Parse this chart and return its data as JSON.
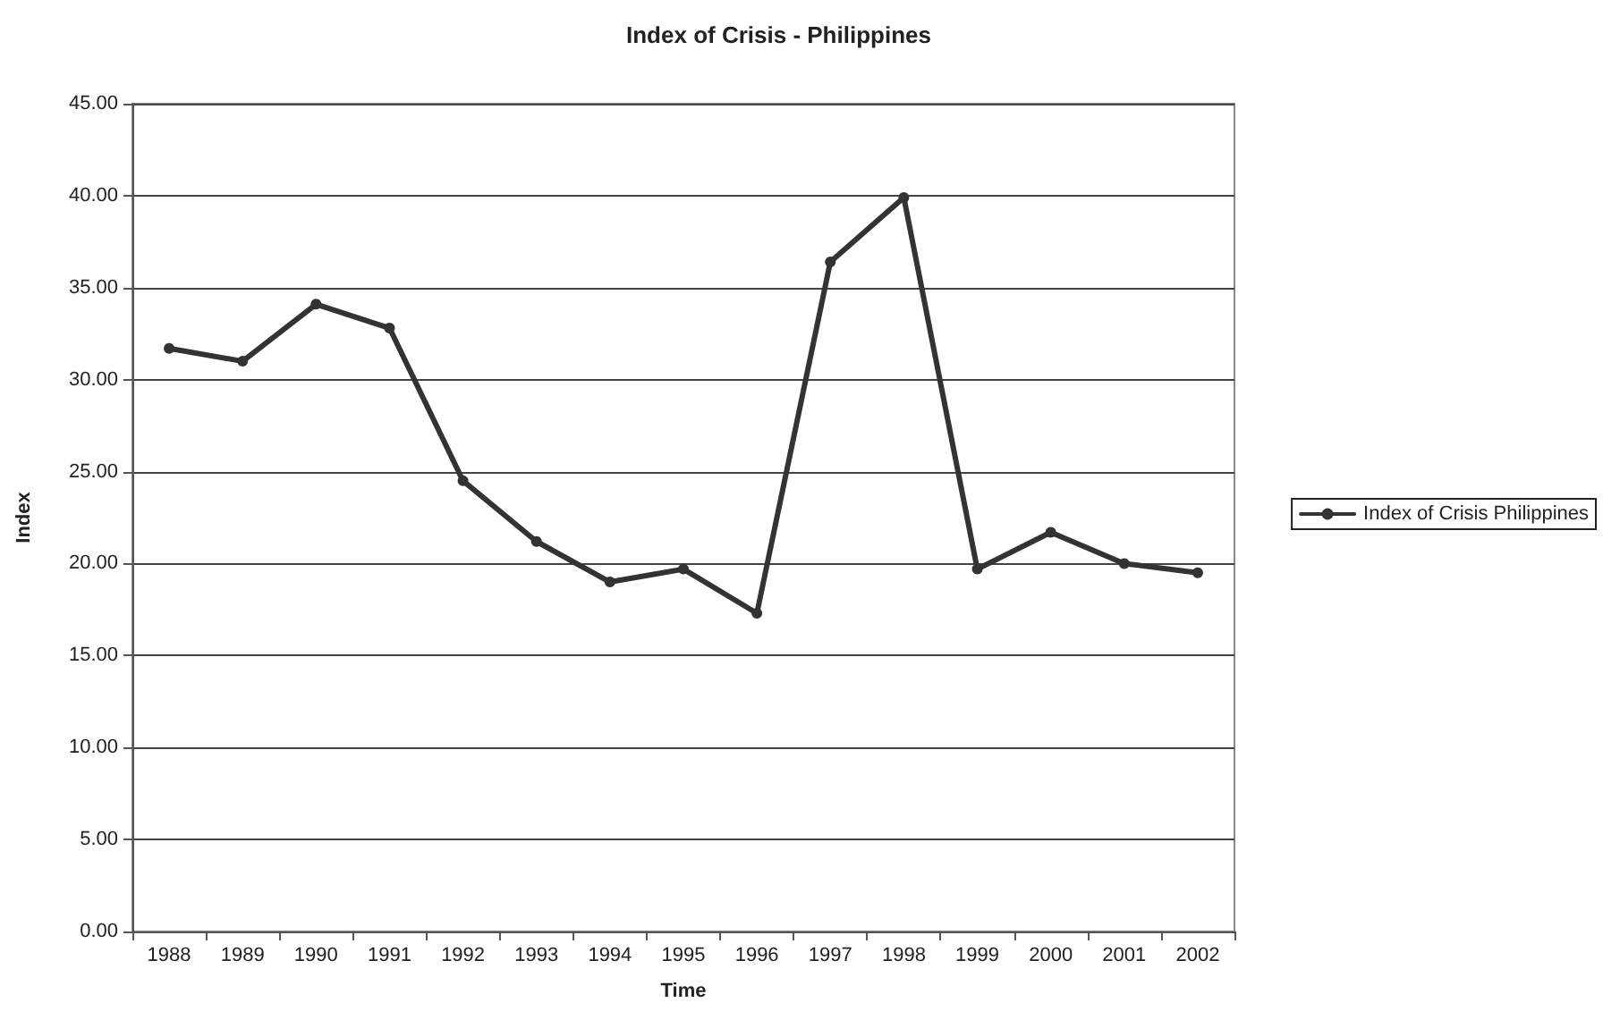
{
  "chart_data": {
    "type": "line",
    "title": "Index of Crisis - Philippines",
    "xlabel": "Time",
    "ylabel": "Index",
    "categories": [
      "1988",
      "1989",
      "1990",
      "1991",
      "1992",
      "1993",
      "1994",
      "1995",
      "1996",
      "1997",
      "1998",
      "1999",
      "2000",
      "2001",
      "2002"
    ],
    "series": [
      {
        "name": "Index of Crisis Philippines",
        "color": "#333333",
        "values": [
          31.7,
          31.0,
          34.1,
          32.8,
          24.5,
          21.2,
          19.0,
          19.7,
          17.3,
          36.4,
          39.9,
          19.7,
          21.7,
          20.0,
          19.5
        ]
      }
    ],
    "ylim": [
      0,
      45
    ],
    "yticks": [
      {
        "value": 0,
        "label": "0.00"
      },
      {
        "value": 5,
        "label": "5.00"
      },
      {
        "value": 10,
        "label": "10.00"
      },
      {
        "value": 15,
        "label": "15.00"
      },
      {
        "value": 20,
        "label": "20.00"
      },
      {
        "value": 25,
        "label": "25.00"
      },
      {
        "value": 30,
        "label": "30.00"
      },
      {
        "value": 35,
        "label": "35.00"
      },
      {
        "value": 40,
        "label": "40.00"
      },
      {
        "value": 45,
        "label": "45.00"
      }
    ],
    "grid": "y",
    "legend": "right",
    "marker": "circle",
    "line_style": "solid"
  }
}
